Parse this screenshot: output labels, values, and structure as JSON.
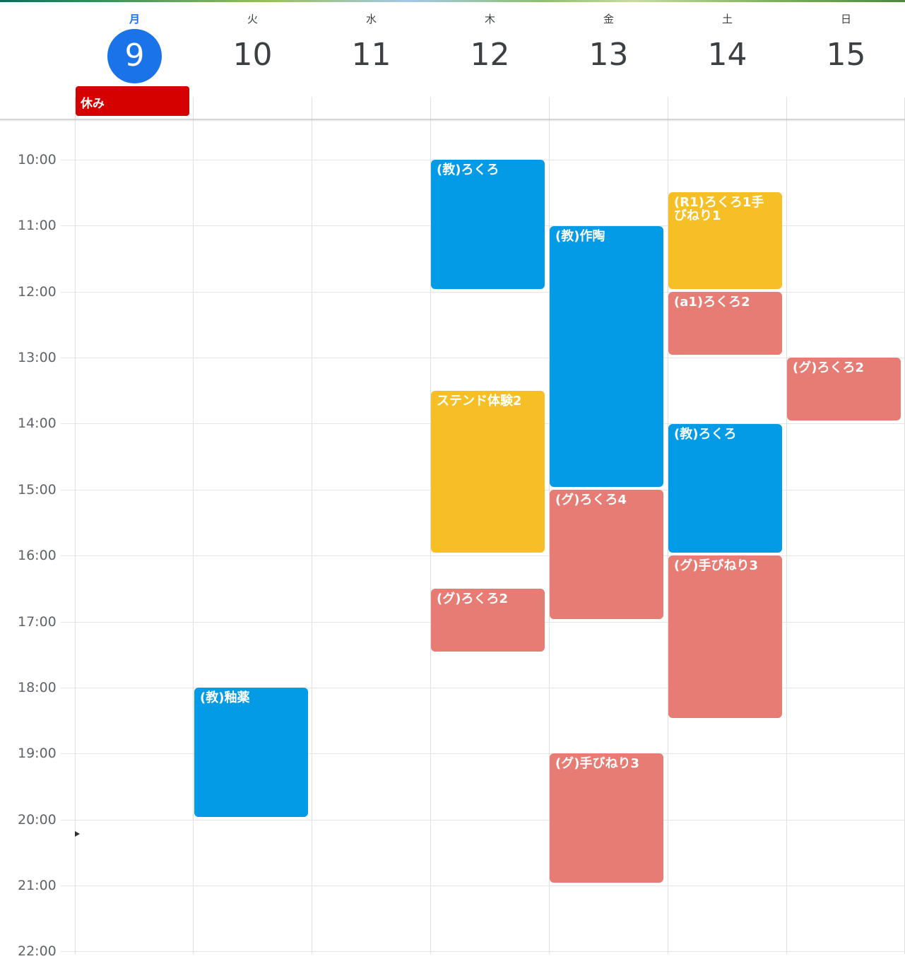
{
  "days": [
    {
      "name": "月",
      "num": "9"
    },
    {
      "name": "火",
      "num": "10"
    },
    {
      "name": "水",
      "num": "11"
    },
    {
      "name": "木",
      "num": "12"
    },
    {
      "name": "金",
      "num": "13"
    },
    {
      "name": "土",
      "num": "14"
    },
    {
      "name": "日",
      "num": "15"
    }
  ],
  "allday": {
    "title": "休み",
    "color": "#d50000"
  },
  "times": [
    "10:00",
    "11:00",
    "12:00",
    "13:00",
    "14:00",
    "15:00",
    "16:00",
    "17:00",
    "18:00",
    "19:00",
    "20:00",
    "21:00",
    "22:00"
  ],
  "colors": {
    "today": "#1a73e8",
    "blue": "#039be5",
    "yellow": "#f6bf26",
    "red": "#e67c73"
  },
  "events": [
    {
      "title": "(教)ろくろ"
    },
    {
      "title": "ステンド体験2"
    },
    {
      "title": "(グ)ろくろ2"
    },
    {
      "title": "(教)釉薬"
    },
    {
      "title": "(教)作陶"
    },
    {
      "title": "(グ)ろくろ4"
    },
    {
      "title": "(グ)手びねり3"
    },
    {
      "title": "(R1)ろくろ1手びねり1"
    },
    {
      "title": "(a1)ろくろ2"
    },
    {
      "title": "(教)ろくろ"
    },
    {
      "title": "(グ)手びねり3"
    },
    {
      "title": "(グ)ろくろ2"
    }
  ]
}
